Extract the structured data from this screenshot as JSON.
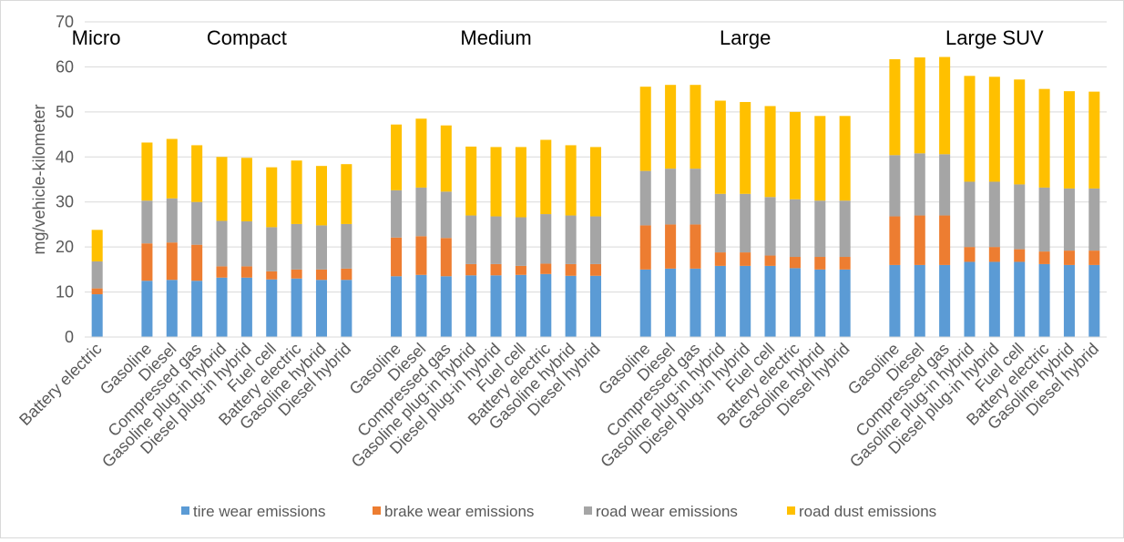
{
  "chart_data": {
    "type": "bar",
    "stacked": true,
    "title": "",
    "xlabel": "",
    "ylabel": "mg/vehicle-kilometer",
    "ylim": [
      0,
      70
    ],
    "yticks": [
      0,
      10,
      20,
      30,
      40,
      50,
      60,
      70
    ],
    "grid": true,
    "legend_position": "bottom",
    "groups": [
      {
        "name": "Micro",
        "categories": [
          "Battery electric"
        ],
        "series_values": {
          "tire wear emissions": [
            9.5
          ],
          "brake wear emissions": [
            1.3
          ],
          "road wear emissions": [
            6.0
          ],
          "road dust emissions": [
            7.0
          ]
        }
      },
      {
        "name": "Compact",
        "categories": [
          "Gasoline",
          "Diesel",
          "Compressed gas",
          "Gasoline plug-in hybrid",
          "Diesel plug-in hybrid",
          "Fuel cell",
          "Battery electric",
          "Gasoline hybrid",
          "Diesel hybrid"
        ],
        "series_values": {
          "tire wear emissions": [
            12.5,
            12.7,
            12.5,
            13.2,
            13.2,
            12.8,
            13.0,
            12.7,
            12.7
          ],
          "brake wear emissions": [
            8.3,
            8.3,
            8.0,
            2.5,
            2.5,
            1.8,
            2.0,
            2.3,
            2.5
          ],
          "road wear emissions": [
            9.5,
            9.8,
            9.5,
            10.1,
            10.0,
            9.8,
            10.1,
            9.8,
            9.9
          ],
          "road dust emissions": [
            12.9,
            13.2,
            12.6,
            14.2,
            14.1,
            13.3,
            14.1,
            13.2,
            13.3
          ]
        }
      },
      {
        "name": "Medium",
        "categories": [
          "Gasoline",
          "Diesel",
          "Compressed gas",
          "Gasoline plug-in hybrid",
          "Diesel plug-in hybrid",
          "Fuel cell",
          "Battery electric",
          "Gasoline hybrid",
          "Diesel hybrid"
        ],
        "series_values": {
          "tire wear emissions": [
            13.5,
            13.8,
            13.5,
            13.7,
            13.7,
            13.8,
            14.0,
            13.6,
            13.6
          ],
          "brake wear emissions": [
            8.6,
            8.6,
            8.5,
            2.5,
            2.5,
            2.0,
            2.3,
            2.6,
            2.6
          ],
          "road wear emissions": [
            10.5,
            10.8,
            10.3,
            10.8,
            10.6,
            10.8,
            11.0,
            10.8,
            10.6
          ],
          "road dust emissions": [
            14.6,
            15.3,
            14.7,
            15.3,
            15.4,
            15.6,
            16.5,
            15.6,
            15.4
          ]
        }
      },
      {
        "name": "Large",
        "categories": [
          "Gasoline",
          "Diesel",
          "Compressed gas",
          "Gasoline plug-in hybrid",
          "Diesel plug-in hybrid",
          "Fuel cell",
          "Battery electric",
          "Gasoline hybrid",
          "Diesel hybrid"
        ],
        "series_values": {
          "tire wear emissions": [
            15.0,
            15.2,
            15.2,
            15.8,
            15.8,
            15.8,
            15.3,
            15.0,
            15.0
          ],
          "brake wear emissions": [
            9.8,
            9.8,
            9.8,
            3.0,
            3.0,
            2.3,
            2.5,
            2.8,
            2.8
          ],
          "road wear emissions": [
            12.1,
            12.4,
            12.4,
            13.0,
            13.0,
            13.0,
            12.8,
            12.5,
            12.5
          ],
          "road dust emissions": [
            18.7,
            18.6,
            18.6,
            20.7,
            20.4,
            20.2,
            19.4,
            18.8,
            18.8
          ]
        }
      },
      {
        "name": "Large SUV",
        "categories": [
          "Gasoline",
          "Diesel",
          "Compressed gas",
          "Gasoline plug-in hybrid",
          "Diesel plug-in hybrid",
          "Fuel cell",
          "Battery electric",
          "Gasoline hybrid",
          "Diesel hybrid"
        ],
        "series_values": {
          "tire wear emissions": [
            16.0,
            16.0,
            16.0,
            16.7,
            16.7,
            16.7,
            16.2,
            16.0,
            16.0
          ],
          "brake wear emissions": [
            10.8,
            11.0,
            11.0,
            3.3,
            3.3,
            2.8,
            2.8,
            3.2,
            3.2
          ],
          "road wear emissions": [
            13.6,
            13.8,
            13.6,
            14.5,
            14.5,
            14.4,
            14.2,
            13.8,
            13.8
          ],
          "road dust emissions": [
            21.3,
            21.3,
            21.6,
            23.5,
            23.3,
            23.3,
            21.9,
            21.6,
            21.5
          ]
        }
      }
    ],
    "series": [
      {
        "name": "tire wear emissions",
        "color": "#5b9bd5"
      },
      {
        "name": "brake wear emissions",
        "color": "#ed7d31"
      },
      {
        "name": "road wear emissions",
        "color": "#a5a5a5"
      },
      {
        "name": "road dust emissions",
        "color": "#ffc000"
      }
    ]
  }
}
